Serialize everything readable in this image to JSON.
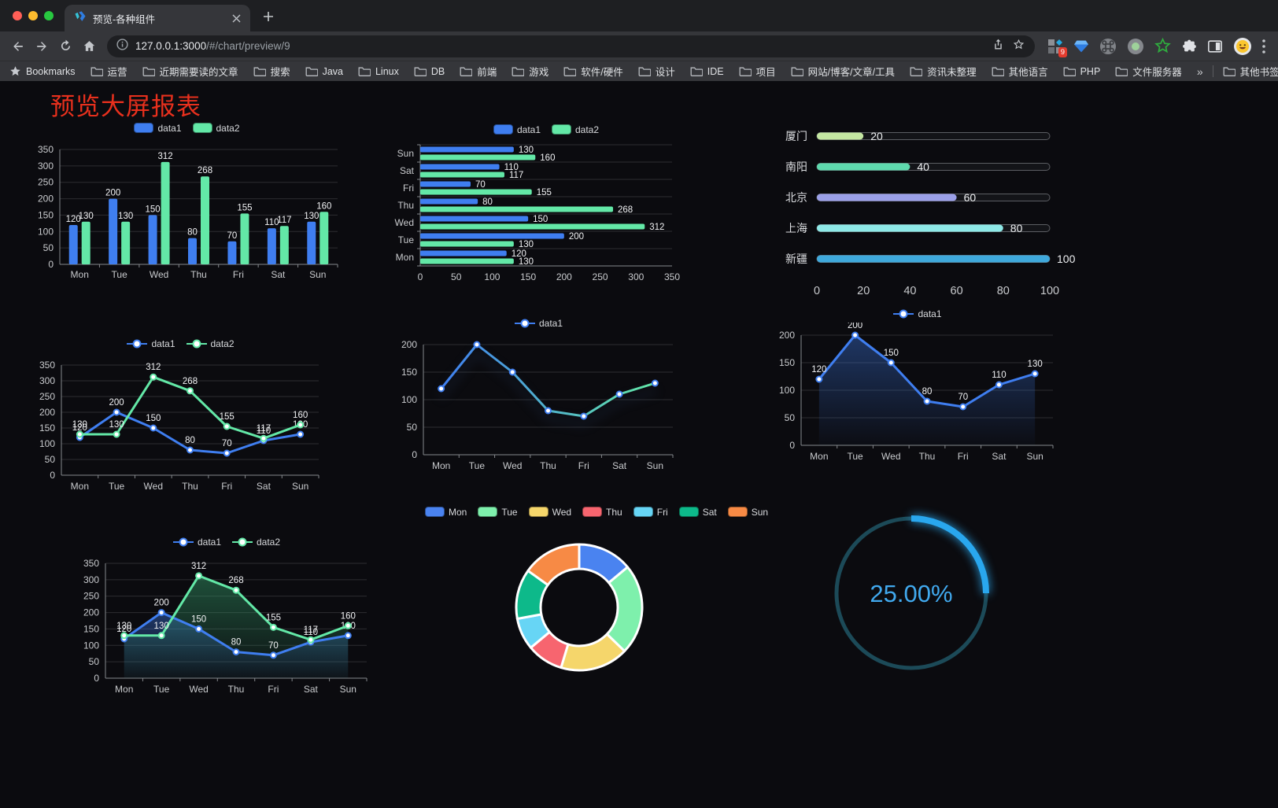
{
  "browser": {
    "tab_title": "预览-各种组件",
    "url_host": "127.0.0.1:3000",
    "url_path": "/#/chart/preview/9",
    "extension_badge": "9",
    "bookmarks_label": "Bookmarks",
    "bookmarks": [
      "运营",
      "近期需要读的文章",
      "搜索",
      "Java",
      "Linux",
      "DB",
      "前端",
      "游戏",
      "软件/硬件",
      "设计",
      "IDE",
      "项目",
      "网站/博客/文章/工具",
      "资讯未整理",
      "其他语言",
      "PHP",
      "文件服务器"
    ],
    "overflow_chevron": "»",
    "other_bookmarks": "其他书签"
  },
  "page": {
    "title": "预览大屏报表",
    "title_color": "#e8301d"
  },
  "chart_data": [
    {
      "type": "bar",
      "categories": [
        "Mon",
        "Tue",
        "Wed",
        "Thu",
        "Fri",
        "Sat",
        "Sun"
      ],
      "series": [
        {
          "name": "data1",
          "color": "#3f7ef0",
          "values": [
            120,
            200,
            150,
            80,
            70,
            110,
            130
          ]
        },
        {
          "name": "data2",
          "color": "#63e8a7",
          "values": [
            130,
            130,
            312,
            268,
            155,
            117,
            160
          ]
        }
      ],
      "ylim": [
        0,
        350
      ],
      "ystep": 50,
      "grid": true,
      "legend_position": "top"
    },
    {
      "type": "hbar",
      "categories": [
        "Mon",
        "Tue",
        "Wed",
        "Thu",
        "Fri",
        "Sat",
        "Sun"
      ],
      "series": [
        {
          "name": "data1",
          "color": "#3f7ef0",
          "values": [
            120,
            200,
            150,
            80,
            70,
            110,
            130
          ]
        },
        {
          "name": "data2",
          "color": "#63e8a7",
          "values": [
            130,
            130,
            312,
            268,
            155,
            117,
            160
          ]
        }
      ],
      "xlim": [
        0,
        350
      ],
      "xstep": 50,
      "legend_position": "top"
    },
    {
      "type": "progress",
      "max": 100,
      "ticks": [
        0,
        20,
        40,
        60,
        80,
        100
      ],
      "items": [
        {
          "label": "厦门",
          "value": 20,
          "color": "#c4e7a2"
        },
        {
          "label": "南阳",
          "value": 40,
          "color": "#5ed9ad"
        },
        {
          "label": "北京",
          "value": 60,
          "color": "#9ba0e8"
        },
        {
          "label": "上海",
          "value": 80,
          "color": "#8ee9e7"
        },
        {
          "label": "新疆",
          "value": 100,
          "color": "#3fa9dc"
        }
      ]
    },
    {
      "type": "line",
      "categories": [
        "Mon",
        "Tue",
        "Wed",
        "Thu",
        "Fri",
        "Sat",
        "Sun"
      ],
      "series": [
        {
          "name": "data1",
          "color": "#3f7ef0",
          "values": [
            120,
            200,
            150,
            80,
            70,
            110,
            130
          ]
        },
        {
          "name": "data2",
          "color": "#63e8a7",
          "values": [
            130,
            130,
            312,
            268,
            155,
            117,
            160
          ]
        }
      ],
      "ylim": [
        0,
        350
      ],
      "ystep": 50,
      "labels": true,
      "legend_position": "top"
    },
    {
      "type": "line",
      "categories": [
        "Mon",
        "Tue",
        "Wed",
        "Thu",
        "Fri",
        "Sat",
        "Sun"
      ],
      "series": [
        {
          "name": "data1",
          "color": "#3f7ef0",
          "values": [
            120,
            200,
            150,
            80,
            70,
            110,
            130
          ],
          "gradient": [
            "#3f7ef0",
            "#63e8a7"
          ]
        }
      ],
      "ylim": [
        0,
        200
      ],
      "ystep": 50,
      "labels": false,
      "shadow": true,
      "legend_position": "top"
    },
    {
      "type": "line",
      "categories": [
        "Mon",
        "Tue",
        "Wed",
        "Thu",
        "Fri",
        "Sat",
        "Sun"
      ],
      "series": [
        {
          "name": "data1",
          "color": "#3f7ef0",
          "values": [
            120,
            200,
            150,
            80,
            70,
            110,
            130
          ],
          "area": [
            "rgba(63,126,240,0.38)",
            "rgba(63,126,240,0.02)"
          ]
        }
      ],
      "ylim": [
        0,
        200
      ],
      "ystep": 50,
      "labels": true,
      "legend_position": "top"
    },
    {
      "type": "line",
      "categories": [
        "Mon",
        "Tue",
        "Wed",
        "Thu",
        "Fri",
        "Sat",
        "Sun"
      ],
      "series": [
        {
          "name": "data1",
          "color": "#3f7ef0",
          "values": [
            120,
            200,
            150,
            80,
            70,
            110,
            130
          ],
          "area": [
            "rgba(63,126,240,0.40)",
            "rgba(63,126,240,0.03)"
          ]
        },
        {
          "name": "data2",
          "color": "#63e8a7",
          "values": [
            130,
            130,
            312,
            268,
            155,
            117,
            160
          ],
          "area": [
            "rgba(58,176,118,0.42)",
            "rgba(58,176,118,0.03)"
          ]
        }
      ],
      "ylim": [
        0,
        350
      ],
      "ystep": 50,
      "labels": true,
      "legend_position": "top"
    },
    {
      "type": "donut",
      "items": [
        {
          "label": "Mon",
          "value": 120,
          "color": "#4a83f0"
        },
        {
          "label": "Tue",
          "value": 200,
          "color": "#7ef0ac"
        },
        {
          "label": "Wed",
          "value": 150,
          "color": "#f5d66b"
        },
        {
          "label": "Thu",
          "value": 80,
          "color": "#f7656f"
        },
        {
          "label": "Fri",
          "value": 70,
          "color": "#67d5f5"
        },
        {
          "label": "Sat",
          "value": 110,
          "color": "#0db98a"
        },
        {
          "label": "Sun",
          "value": 130,
          "color": "#f78a45"
        }
      ],
      "legend_position": "top"
    },
    {
      "type": "gauge",
      "value": 25,
      "display": "25.00%",
      "color": "#29a7ee",
      "track": "#1c4a58",
      "text_color": "#41a9ee"
    }
  ]
}
